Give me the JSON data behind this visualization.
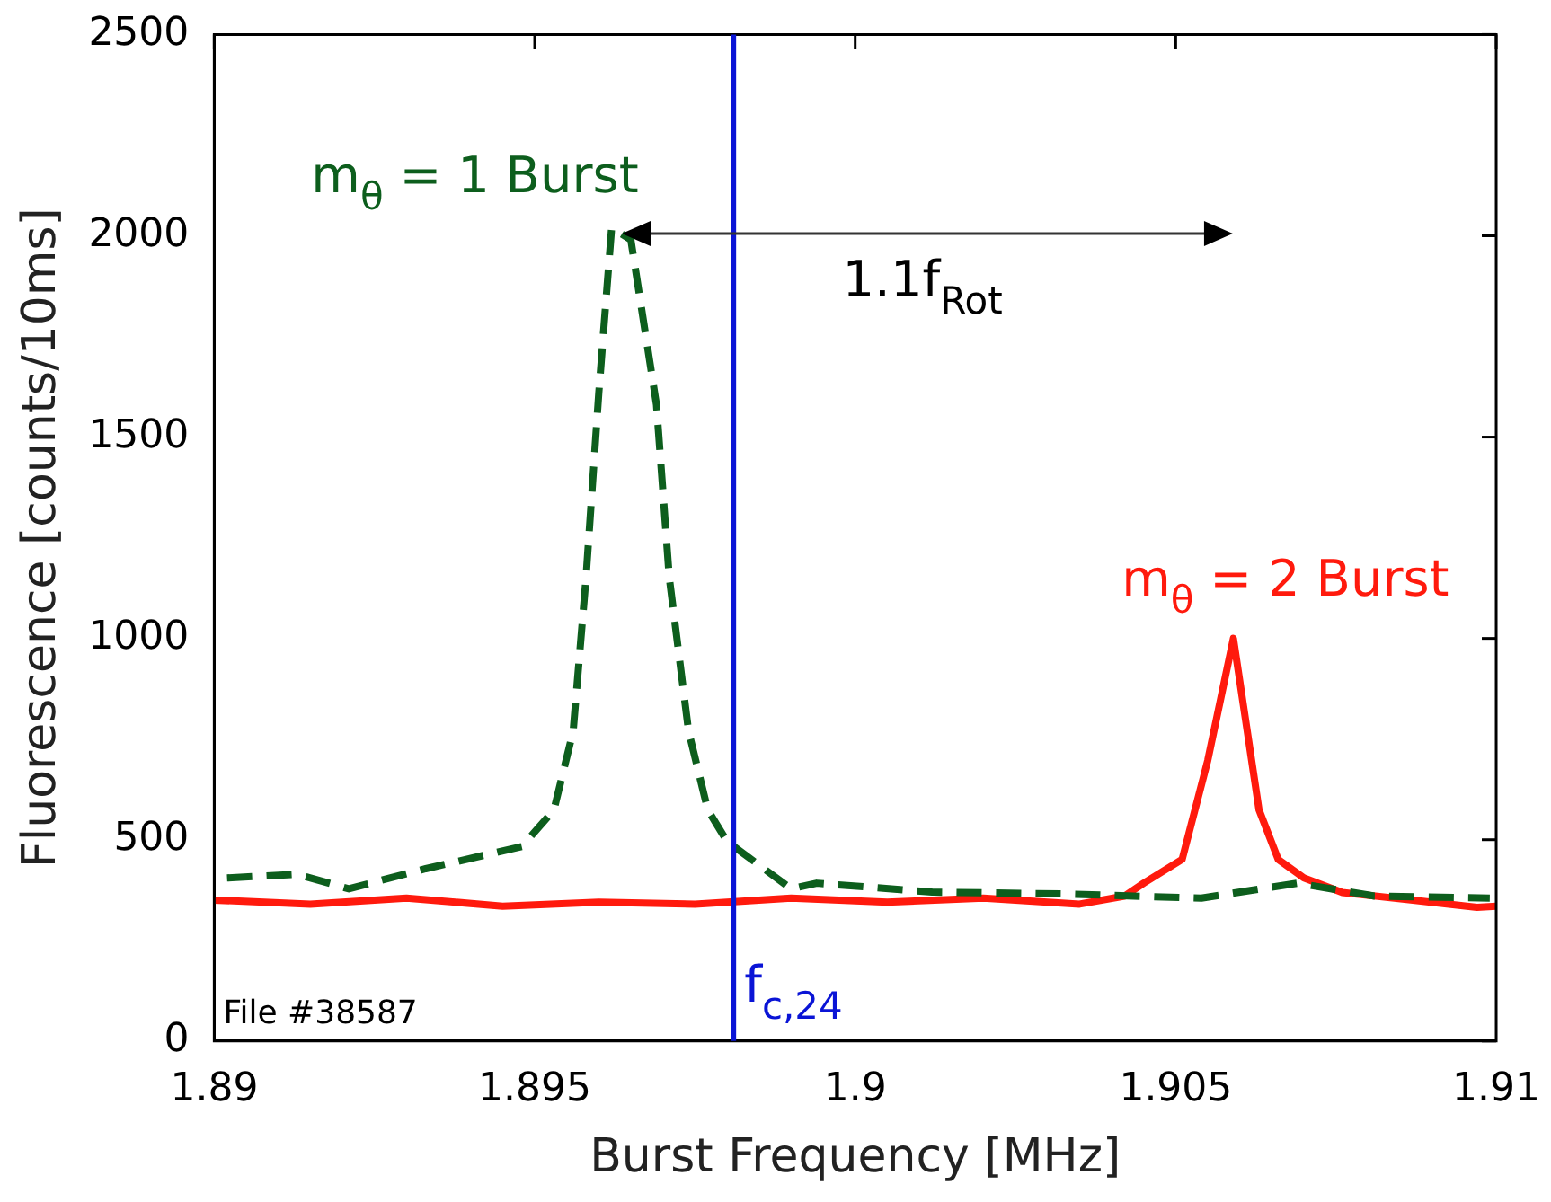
{
  "chart_data": {
    "type": "line",
    "xlabel": "Burst Frequency [MHz]",
    "ylabel": "Fluorescence [counts/10ms]",
    "xlim": [
      1.89,
      1.91
    ],
    "xticks": [
      1.89,
      1.895,
      1.9,
      1.905,
      1.91
    ],
    "ylim": [
      0,
      2500
    ],
    "yticks": [
      0,
      500,
      1000,
      1500,
      2000,
      2500
    ],
    "grid": false,
    "legend": false,
    "marker": "none",
    "series": [
      {
        "name": "m$_{θ}$ = 1 Burst",
        "color": "#0d5e1d",
        "line_style": "dashed",
        "x": [
          1.8902,
          1.8913,
          1.8921,
          1.8933,
          1.8948,
          1.8953,
          1.8956,
          1.8958,
          1.896,
          1.8962,
          1.8965,
          1.8969,
          1.8971,
          1.8974,
          1.8977,
          1.898,
          1.8985,
          1.899,
          1.8994,
          1.9012,
          1.9033,
          1.9054,
          1.9069,
          1.9081,
          1.9099
        ],
        "values": [
          405,
          414,
          378,
          428,
          483,
          574,
          770,
          1150,
          1610,
          2020,
          1990,
          1580,
          1150,
          770,
          574,
          496,
          437,
          378,
          392,
          370,
          365,
          355,
          392,
          360,
          355
        ]
      },
      {
        "name": "m$_{θ}$ = 2 Burst",
        "color": "#ff1a0d",
        "line_style": "solid",
        "x": [
          1.89,
          1.8915,
          1.893,
          1.8945,
          1.896,
          1.8975,
          1.899,
          1.9005,
          1.902,
          1.9035,
          1.9042,
          1.9045,
          1.9051,
          1.9055,
          1.9059,
          1.9063,
          1.9066,
          1.907,
          1.9076,
          1.9087,
          1.9097,
          1.91
        ],
        "values": [
          350,
          340,
          355,
          335,
          345,
          340,
          355,
          345,
          355,
          340,
          360,
          392,
          451,
          697,
          1000,
          574,
          451,
          405,
          369,
          350,
          332,
          335
        ]
      }
    ],
    "ref_lines": [
      {
        "axis": "x",
        "value": 1.8981,
        "label": "f$_{c,24}$",
        "color": "#0a14d6"
      }
    ],
    "annotations": [
      "1.1f$_{Rot}$",
      "File #38587"
    ]
  }
}
